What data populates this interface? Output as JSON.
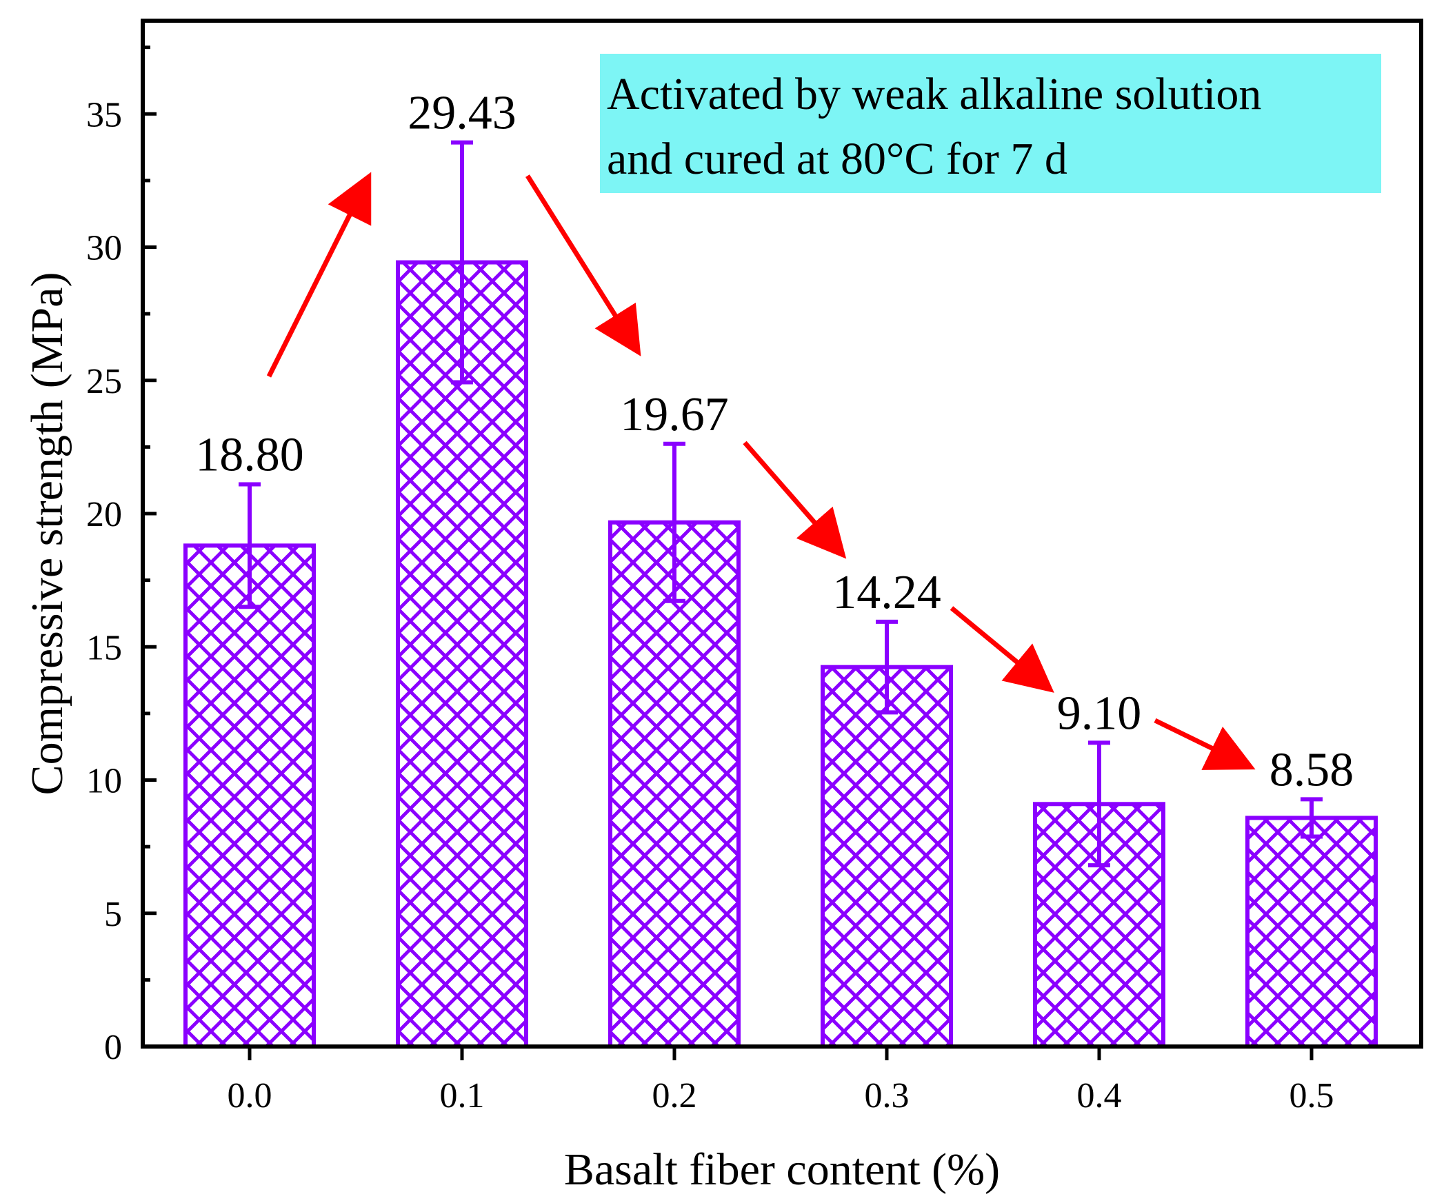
{
  "chart_data": {
    "type": "bar",
    "title": "",
    "xlabel": "Basalt fiber content (%)",
    "ylabel": "Compressive strength (MPa)",
    "categories": [
      "0.0",
      "0.1",
      "0.2",
      "0.3",
      "0.4",
      "0.5"
    ],
    "values": [
      18.8,
      29.43,
      19.67,
      14.24,
      9.1,
      8.58
    ],
    "value_labels": [
      "18.80",
      "29.43",
      "19.67",
      "14.24",
      "9.10",
      "8.58"
    ],
    "errors": [
      2.3,
      4.5,
      2.95,
      1.7,
      2.3,
      0.7
    ],
    "ylim": [
      0,
      38.5
    ],
    "yticks": [
      0,
      5,
      10,
      15,
      20,
      25,
      30,
      35
    ],
    "ytick_labels": [
      "0",
      "5",
      "10",
      "15",
      "20",
      "25",
      "30",
      "35"
    ],
    "grid": false,
    "pattern": "crosshatch",
    "annotation": {
      "line1": "Activated by weak alkaline solution",
      "line2": "and cured at 80°C for 7 d"
    },
    "trend_arrows": [
      "0.0→0.1 up",
      "0.1→0.2 down",
      "0.2→0.3 down",
      "0.3→0.4 down",
      "0.4→0.5 down"
    ]
  },
  "colors": {
    "bar": "#8a00ff",
    "error_bar": "#8a00ff",
    "arrow": "#ff0000",
    "annotation_bg": "#7df5f5",
    "axis": "#000000"
  }
}
